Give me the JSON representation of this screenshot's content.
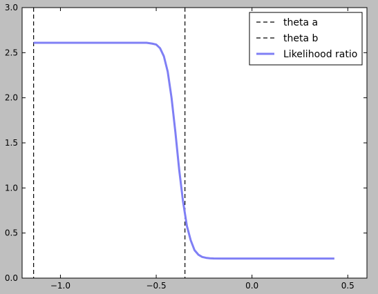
{
  "chart_data": {
    "type": "line",
    "xlim": [
      -1.2,
      0.6
    ],
    "ylim": [
      0.0,
      3.0
    ],
    "x_ticks": [
      -1.0,
      -0.5,
      0.0,
      0.5
    ],
    "x_tick_labels": [
      "−1.0",
      "−0.5",
      "0.0",
      "0.5"
    ],
    "y_ticks": [
      0.0,
      0.5,
      1.0,
      1.5,
      2.0,
      2.5,
      3.0
    ],
    "y_tick_labels": [
      "0.0",
      "0.5",
      "1.0",
      "1.5",
      "2.0",
      "2.5",
      "3.0"
    ],
    "grid": false,
    "legend_position": "top-right",
    "vlines": [
      {
        "name": "theta a",
        "x": -1.14,
        "color": "#000000",
        "style": "dashed"
      },
      {
        "name": "theta b",
        "x": -0.35,
        "color": "#000000",
        "style": "dashed"
      }
    ],
    "series": [
      {
        "name": "Likelihood ratio",
        "color": "#7f7ff5",
        "x": [
          -1.14,
          -1.0,
          -0.9,
          -0.8,
          -0.7,
          -0.6,
          -0.55,
          -0.52,
          -0.5,
          -0.48,
          -0.46,
          -0.44,
          -0.42,
          -0.4,
          -0.38,
          -0.36,
          -0.34,
          -0.32,
          -0.3,
          -0.28,
          -0.26,
          -0.24,
          -0.22,
          -0.2,
          -0.15,
          -0.1,
          0.0,
          0.1,
          0.2,
          0.3,
          0.43
        ],
        "y": [
          2.61,
          2.61,
          2.61,
          2.61,
          2.61,
          2.61,
          2.61,
          2.6,
          2.59,
          2.55,
          2.46,
          2.29,
          2.0,
          1.62,
          1.2,
          0.85,
          0.58,
          0.42,
          0.31,
          0.26,
          0.235,
          0.225,
          0.22,
          0.218,
          0.217,
          0.217,
          0.217,
          0.217,
          0.217,
          0.217,
          0.217
        ]
      }
    ]
  }
}
